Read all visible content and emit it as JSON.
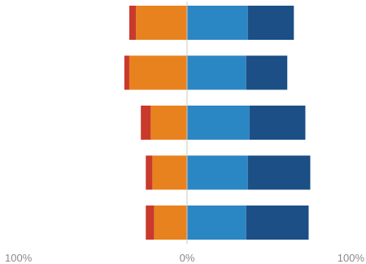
{
  "chart_data": {
    "type": "bar",
    "orientation": "horizontal",
    "stacking": "diverging",
    "xlim": [
      -100,
      100
    ],
    "x_tick_labels": [
      "100%",
      "0%",
      "100%"
    ],
    "rows": [
      {
        "negative": [
          4,
          31
        ],
        "positive": [
          37,
          28
        ]
      },
      {
        "negative": [
          3,
          35
        ],
        "positive": [
          36,
          25
        ]
      },
      {
        "negative": [
          6,
          22
        ],
        "positive": [
          38,
          34
        ]
      },
      {
        "negative": [
          4,
          21
        ],
        "positive": [
          37,
          38
        ]
      },
      {
        "negative": [
          5,
          20
        ],
        "positive": [
          36,
          38
        ]
      }
    ],
    "segment_colors": {
      "negative": [
        "#c93a2c",
        "#e8821e"
      ],
      "positive": [
        "#2b86c4",
        "#1b4f85"
      ]
    },
    "zero_line_color": "#c8c8c8",
    "grid": false,
    "legend": "none"
  }
}
